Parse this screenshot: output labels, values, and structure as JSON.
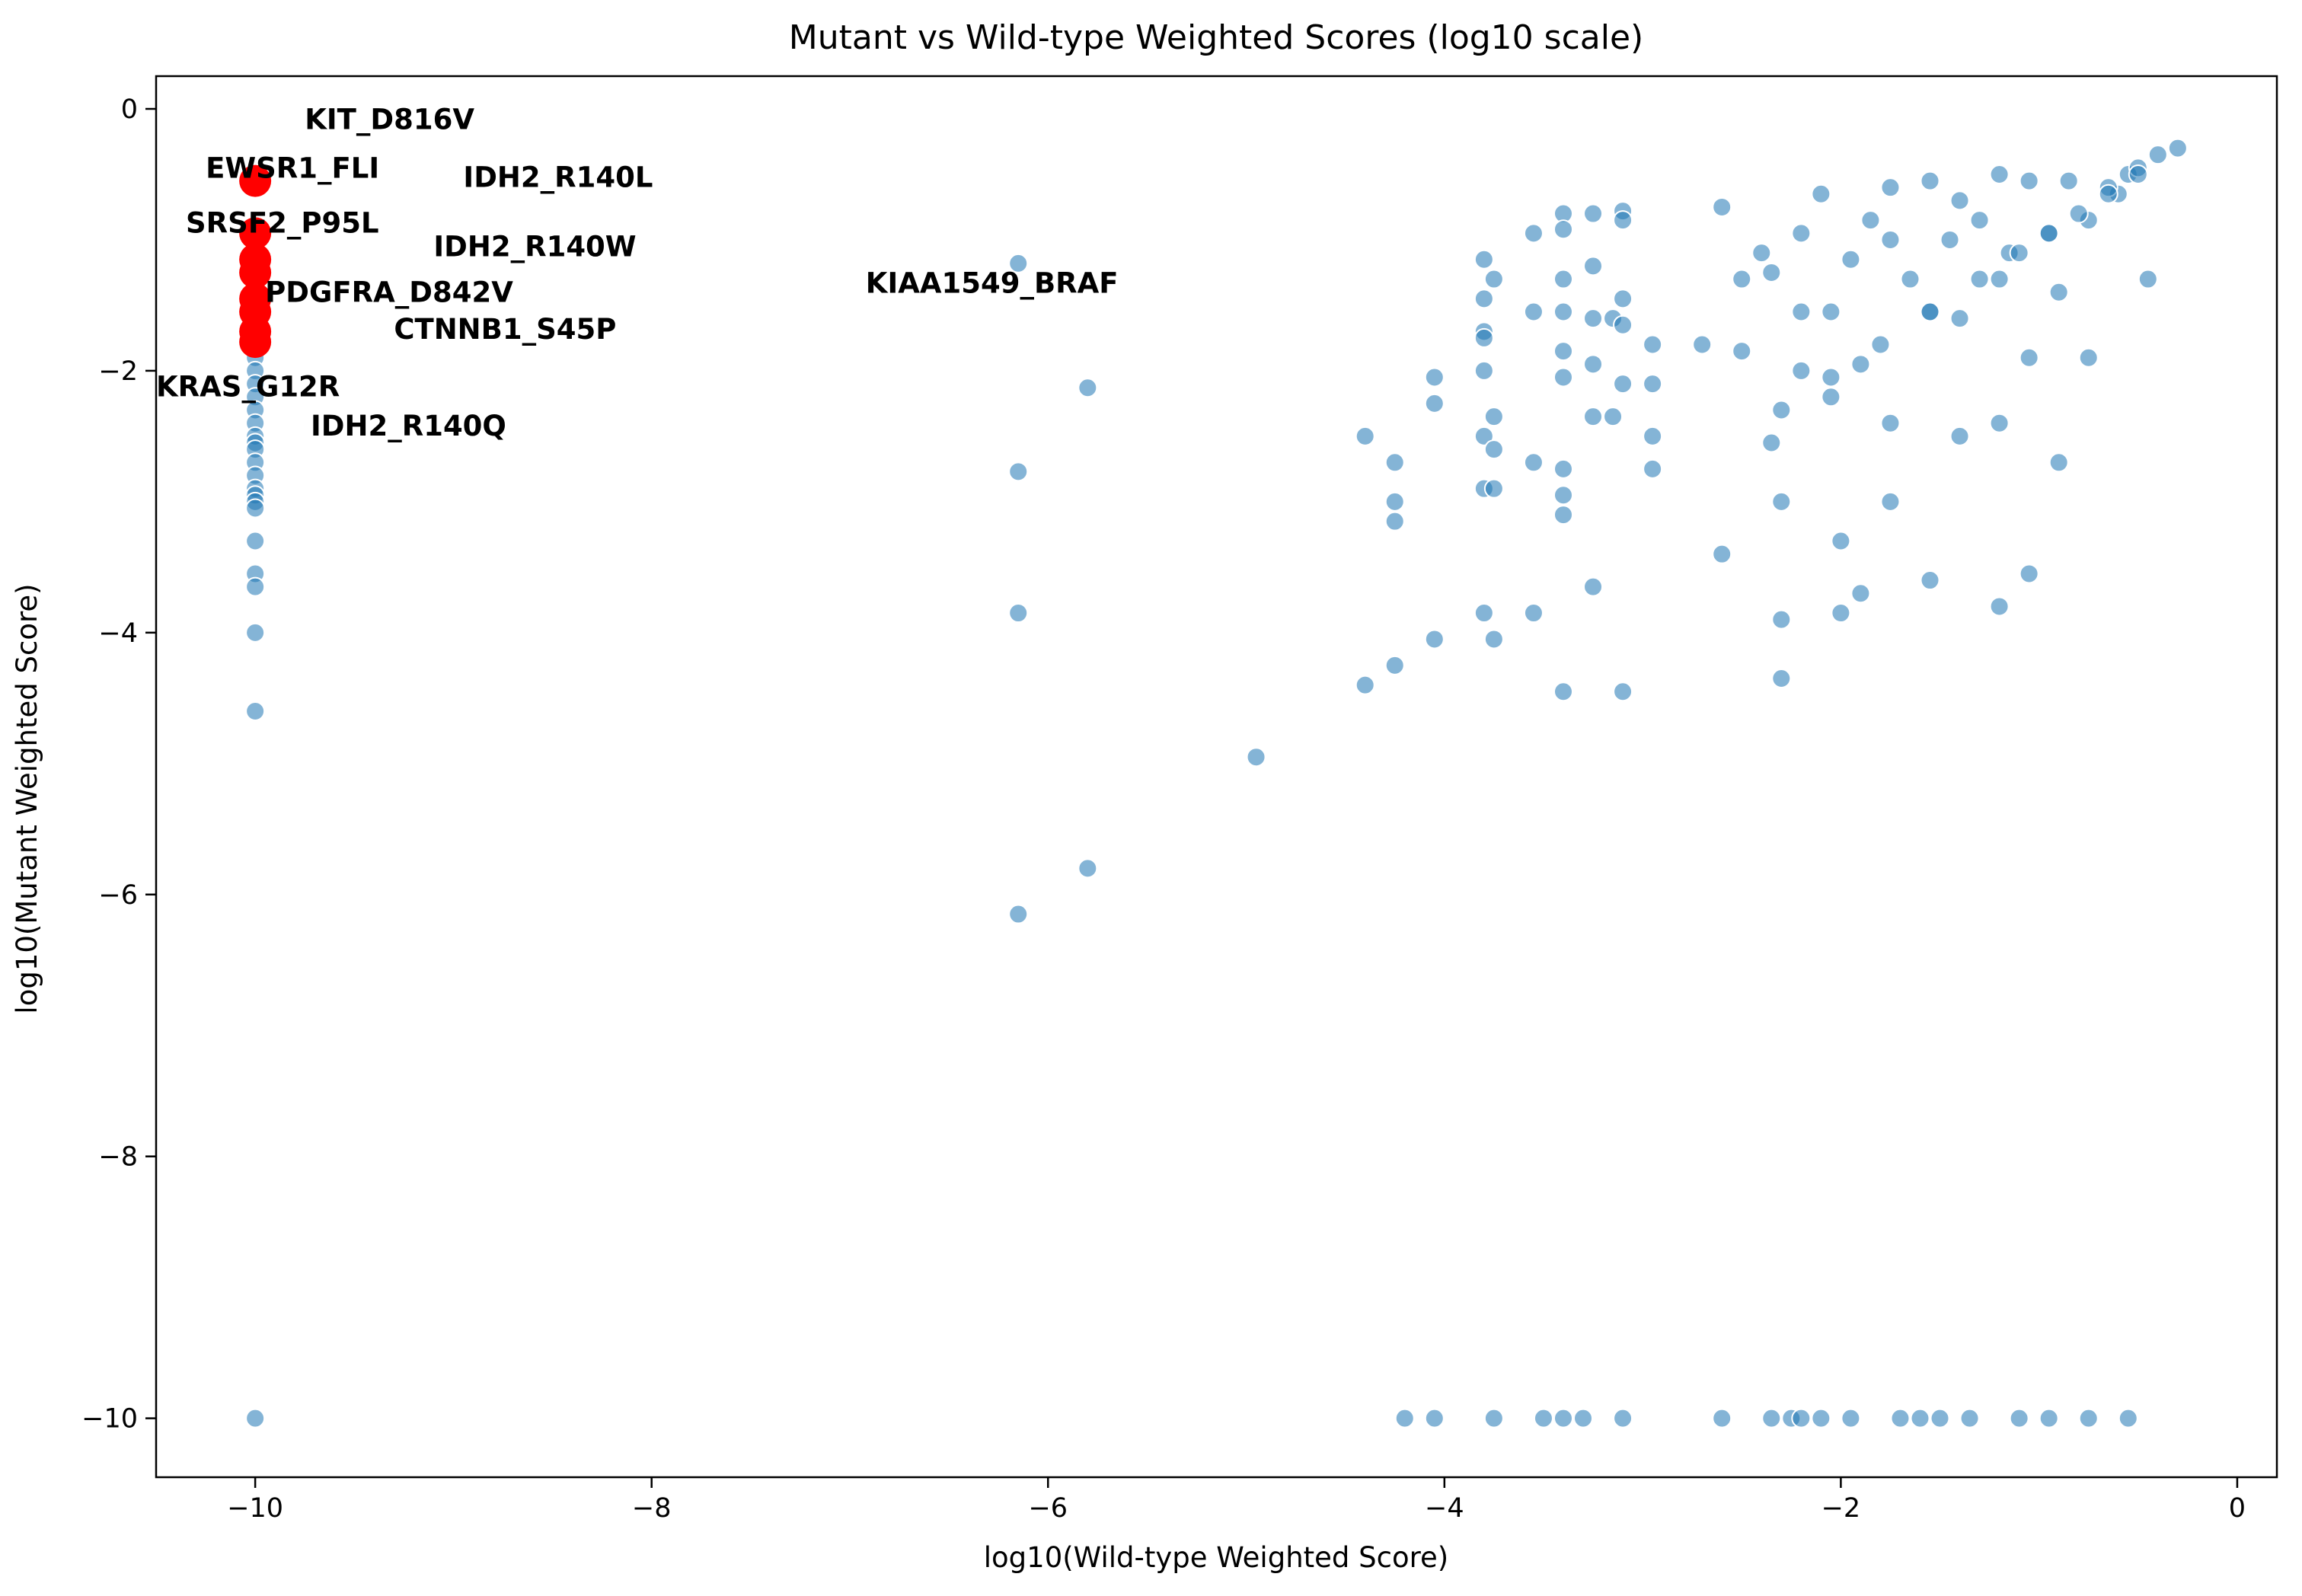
{
  "chart_data": {
    "type": "scatter",
    "title": "Mutant vs Wild-type Weighted Scores (log10 scale)",
    "xlabel": "log10(Wild-type Weighted Score)",
    "ylabel": "log10(Mutant Weighted Score)",
    "xlim": [
      -10.5,
      0.2
    ],
    "ylim": [
      -10.45,
      0.25
    ],
    "xticks": [
      -10,
      -8,
      -6,
      -4,
      -2,
      0
    ],
    "xtick_labels": [
      "−10",
      "−8",
      "−6",
      "−4",
      "−2",
      "0"
    ],
    "yticks": [
      0,
      -2,
      -4,
      -6,
      -8,
      -10
    ],
    "ytick_labels": [
      "0",
      "−2",
      "−4",
      "−6",
      "−8",
      "−10"
    ],
    "grid": false,
    "colors": {
      "points": "#1f77b4",
      "highlight": "#ff0000"
    },
    "series": [
      {
        "role": "all-variants",
        "points": [
          [
            -10,
            -1.8
          ],
          [
            -10,
            -1.9
          ],
          [
            -10,
            -2.0
          ],
          [
            -10,
            -2.1
          ],
          [
            -10,
            -2.2
          ],
          [
            -10,
            -2.3
          ],
          [
            -10,
            -2.4
          ],
          [
            -10,
            -2.5
          ],
          [
            -10,
            -2.55
          ],
          [
            -10,
            -2.6
          ],
          [
            -10,
            -2.7
          ],
          [
            -10,
            -2.8
          ],
          [
            -10,
            -2.9
          ],
          [
            -10,
            -2.95
          ],
          [
            -10,
            -3.0
          ],
          [
            -10,
            -3.05
          ],
          [
            -10,
            -3.3
          ],
          [
            -10,
            -3.55
          ],
          [
            -10,
            -3.65
          ],
          [
            -10,
            -4.0
          ],
          [
            -10,
            -4.6
          ],
          [
            -10,
            -10
          ],
          [
            -6.15,
            -1.18
          ],
          [
            -6.15,
            -2.77
          ],
          [
            -6.15,
            -3.85
          ],
          [
            -6.15,
            -6.15
          ],
          [
            -5.8,
            -2.13
          ],
          [
            -5.8,
            -5.8
          ],
          [
            -4.95,
            -4.95
          ],
          [
            -4.4,
            -2.5
          ],
          [
            -4.4,
            -4.4
          ],
          [
            -4.25,
            -2.7
          ],
          [
            -4.25,
            -3.0
          ],
          [
            -4.25,
            -3.15
          ],
          [
            -4.25,
            -4.25
          ],
          [
            -4.05,
            -2.05
          ],
          [
            -4.05,
            -2.25
          ],
          [
            -4.05,
            -4.05
          ],
          [
            -3.8,
            -1.15
          ],
          [
            -3.8,
            -1.45
          ],
          [
            -3.8,
            -1.7
          ],
          [
            -3.8,
            -1.75
          ],
          [
            -3.8,
            -2.0
          ],
          [
            -3.8,
            -2.5
          ],
          [
            -3.8,
            -2.9
          ],
          [
            -3.8,
            -3.85
          ],
          [
            -3.75,
            -1.3
          ],
          [
            -3.75,
            -2.35
          ],
          [
            -3.75,
            -2.6
          ],
          [
            -3.75,
            -2.9
          ],
          [
            -3.75,
            -4.05
          ],
          [
            -3.55,
            -0.95
          ],
          [
            -3.55,
            -1.55
          ],
          [
            -3.55,
            -2.7
          ],
          [
            -3.55,
            -3.85
          ],
          [
            -3.4,
            -0.8
          ],
          [
            -3.4,
            -0.92
          ],
          [
            -3.4,
            -1.3
          ],
          [
            -3.4,
            -1.55
          ],
          [
            -3.4,
            -1.85
          ],
          [
            -3.4,
            -2.05
          ],
          [
            -3.4,
            -2.75
          ],
          [
            -3.4,
            -2.95
          ],
          [
            -3.4,
            -3.1
          ],
          [
            -3.4,
            -4.45
          ],
          [
            -3.25,
            -0.8
          ],
          [
            -3.25,
            -1.2
          ],
          [
            -3.25,
            -1.6
          ],
          [
            -3.25,
            -1.95
          ],
          [
            -3.25,
            -2.35
          ],
          [
            -3.25,
            -3.65
          ],
          [
            -3.15,
            -1.6
          ],
          [
            -3.15,
            -2.35
          ],
          [
            -3.1,
            -0.78
          ],
          [
            -3.1,
            -0.85
          ],
          [
            -3.1,
            -1.45
          ],
          [
            -3.1,
            -1.65
          ],
          [
            -3.1,
            -2.1
          ],
          [
            -3.1,
            -4.45
          ],
          [
            -2.95,
            -1.8
          ],
          [
            -2.95,
            -2.1
          ],
          [
            -2.95,
            -2.5
          ],
          [
            -2.95,
            -2.75
          ],
          [
            -2.7,
            -1.8
          ],
          [
            -2.6,
            -3.4
          ],
          [
            -2.5,
            -1.3
          ],
          [
            -2.5,
            -1.85
          ],
          [
            -2.35,
            -1.25
          ],
          [
            -2.35,
            -2.55
          ],
          [
            -2.3,
            -3.0
          ],
          [
            -2.3,
            -3.9
          ],
          [
            -2.3,
            -4.35
          ],
          [
            -2.2,
            -0.95
          ],
          [
            -2.2,
            -1.55
          ],
          [
            -2.2,
            -2.0
          ],
          [
            -2.05,
            -1.55
          ],
          [
            -2.05,
            -2.2
          ],
          [
            -2.0,
            -3.3
          ],
          [
            -2.0,
            -3.85
          ],
          [
            -1.9,
            -1.95
          ],
          [
            -1.9,
            -3.7
          ],
          [
            -1.75,
            -0.6
          ],
          [
            -1.75,
            -1.0
          ],
          [
            -1.75,
            -2.4
          ],
          [
            -1.75,
            -3.0
          ],
          [
            -1.55,
            -0.55
          ],
          [
            -1.55,
            -1.55
          ],
          [
            -1.55,
            -3.6
          ],
          [
            -1.4,
            -0.7
          ],
          [
            -1.4,
            -1.6
          ],
          [
            -1.4,
            -2.5
          ],
          [
            -1.2,
            -0.5
          ],
          [
            -1.2,
            -1.3
          ],
          [
            -1.2,
            -2.4
          ],
          [
            -1.2,
            -3.8
          ],
          [
            -1.05,
            -0.55
          ],
          [
            -1.05,
            -1.9
          ],
          [
            -1.05,
            -3.55
          ],
          [
            -0.9,
            -1.4
          ],
          [
            -0.9,
            -2.7
          ],
          [
            -0.75,
            -1.9
          ],
          [
            -0.6,
            -0.65
          ],
          [
            -0.45,
            -1.3
          ],
          [
            -0.3,
            -0.3
          ],
          [
            -2.6,
            -0.75
          ],
          [
            -2.4,
            -1.1
          ],
          [
            -2.1,
            -0.65
          ],
          [
            -1.95,
            -1.15
          ],
          [
            -1.85,
            -0.85
          ],
          [
            -1.65,
            -1.3
          ],
          [
            -1.45,
            -1.0
          ],
          [
            -1.3,
            -0.85
          ],
          [
            -1.15,
            -1.1
          ],
          [
            -0.95,
            -0.95
          ],
          [
            -0.85,
            -0.55
          ],
          [
            -0.75,
            -0.85
          ],
          [
            -0.65,
            -0.6
          ],
          [
            -0.55,
            -0.5
          ],
          [
            -0.5,
            -0.45
          ],
          [
            -0.4,
            -0.35
          ],
          [
            -2.3,
            -2.3
          ],
          [
            -2.05,
            -2.05
          ],
          [
            -1.8,
            -1.8
          ],
          [
            -1.55,
            -1.55
          ],
          [
            -1.3,
            -1.3
          ],
          [
            -1.1,
            -1.1
          ],
          [
            -0.95,
            -0.95
          ],
          [
            -0.8,
            -0.8
          ],
          [
            -0.65,
            -0.65
          ],
          [
            -0.5,
            -0.5
          ],
          [
            -4.2,
            -10
          ],
          [
            -4.05,
            -10
          ],
          [
            -3.75,
            -10
          ],
          [
            -3.5,
            -10
          ],
          [
            -3.4,
            -10
          ],
          [
            -3.3,
            -10
          ],
          [
            -3.1,
            -10
          ],
          [
            -2.6,
            -10
          ],
          [
            -2.35,
            -10
          ],
          [
            -2.25,
            -10
          ],
          [
            -2.2,
            -10
          ],
          [
            -2.1,
            -10
          ],
          [
            -1.95,
            -10
          ],
          [
            -1.7,
            -10
          ],
          [
            -1.6,
            -10
          ],
          [
            -1.5,
            -10
          ],
          [
            -1.35,
            -10
          ],
          [
            -1.1,
            -10
          ],
          [
            -0.95,
            -10
          ],
          [
            -0.75,
            -10
          ],
          [
            -0.55,
            -10
          ]
        ]
      },
      {
        "role": "highlighted-variants",
        "points": [
          [
            -10,
            -0.55
          ],
          [
            -10,
            -0.95
          ],
          [
            -10,
            -1.15
          ],
          [
            -10,
            -1.25
          ],
          [
            -10,
            -1.45
          ],
          [
            -10,
            -1.55
          ],
          [
            -10,
            -1.7
          ],
          [
            -10,
            -1.78
          ]
        ]
      }
    ],
    "annotations": [
      {
        "text": "KIT_D816V",
        "x": -9.75,
        "y": -0.08
      },
      {
        "text": "EWSR1_FLI",
        "x": -10.25,
        "y": -0.45
      },
      {
        "text": "IDH2_R140L",
        "x": -8.95,
        "y": -0.52
      },
      {
        "text": "SRSF2_P95L",
        "x": -10.35,
        "y": -0.87
      },
      {
        "text": "IDH2_R140W",
        "x": -9.1,
        "y": -1.05
      },
      {
        "text": "KIAA1549_BRAF",
        "x": -6.92,
        "y": -1.33
      },
      {
        "text": "PDGFRA_D842V",
        "x": -9.95,
        "y": -1.4
      },
      {
        "text": "CTNNB1_S45P",
        "x": -9.3,
        "y": -1.68
      },
      {
        "text": "KRAS_G12R",
        "x": -10.5,
        "y": -2.12
      },
      {
        "text": "IDH2_R140Q",
        "x": -9.72,
        "y": -2.42
      }
    ]
  }
}
